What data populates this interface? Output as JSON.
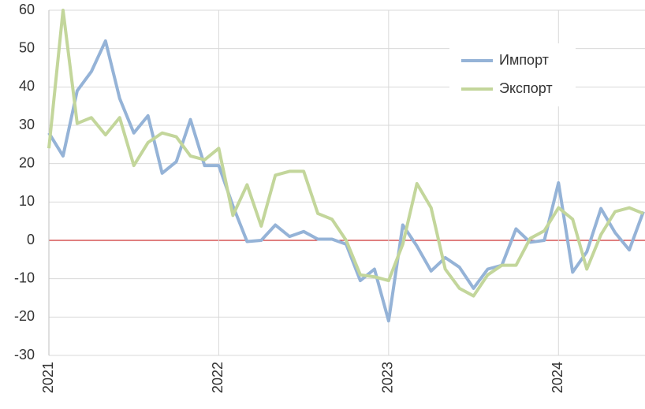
{
  "chart_data": {
    "type": "line",
    "categories": [
      "2021",
      null,
      null,
      null,
      null,
      null,
      null,
      null,
      null,
      null,
      null,
      null,
      "2022",
      null,
      null,
      null,
      null,
      null,
      null,
      null,
      null,
      null,
      null,
      null,
      "2023",
      null,
      null,
      null,
      null,
      null,
      null,
      null,
      null,
      null,
      null,
      null,
      "2024",
      null,
      null,
      null,
      null,
      null,
      null
    ],
    "series": [
      {
        "name": "Импорт",
        "color": "#95b3d7",
        "values": [
          28,
          22,
          39,
          44,
          52,
          37,
          28,
          32.5,
          17.5,
          20.5,
          31.5,
          19.5,
          19.5,
          9,
          -0.3,
          0,
          4,
          1,
          2.3,
          0.3,
          0.3,
          -1,
          -10.5,
          -7.5,
          -21,
          4,
          -1.5,
          -8,
          -4.5,
          -7,
          -12.5,
          -7.5,
          -6.5,
          3,
          -0.5,
          0,
          15,
          -8.3,
          -3,
          8.3,
          2,
          -2.5,
          7.5
        ]
      },
      {
        "name": "Экспорт",
        "color": "#c3d69b",
        "values": [
          24,
          60,
          30.5,
          32,
          27.5,
          32,
          19.5,
          25.5,
          28,
          27,
          22,
          21,
          24,
          6.5,
          14.5,
          3.7,
          17,
          18,
          18,
          7,
          5.5,
          0,
          -9,
          -9.5,
          -10.5,
          -1,
          14.8,
          8.5,
          -7.5,
          -12.5,
          -14.5,
          -9,
          -6.5,
          -6.5,
          0.5,
          2.5,
          8.5,
          5.5,
          -7.5,
          1.5,
          7.5,
          8.5,
          7
        ]
      }
    ],
    "ylim": [
      -30,
      60
    ],
    "yticks": [
      -30,
      -20,
      -10,
      0,
      10,
      20,
      30,
      40,
      50,
      60
    ],
    "grid": true,
    "zero_line_color": "#c00000",
    "legend": "upper right"
  }
}
